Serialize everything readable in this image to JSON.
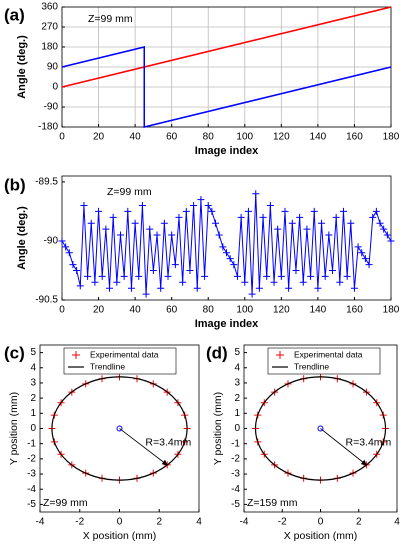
{
  "chart_data": [
    {
      "type": "line",
      "panel_label": "(a)",
      "xlabel": "Image index",
      "ylabel": "Angle (deg.)",
      "annotation": "Z=99 mm",
      "xlim": [
        0,
        180
      ],
      "ylim": [
        -180,
        360
      ],
      "xticks": [
        0,
        20,
        40,
        60,
        80,
        100,
        120,
        140,
        160,
        180
      ],
      "yticks": [
        -180,
        -90,
        0,
        90,
        180,
        270,
        360
      ],
      "grid": true,
      "series": [
        {
          "color": "#ff0000",
          "x": [
            0,
            180
          ],
          "values": [
            0,
            360
          ]
        },
        {
          "color": "#0000ff",
          "x": [
            0,
            45,
            45,
            180
          ],
          "values": [
            90,
            180,
            -180,
            90
          ]
        }
      ]
    },
    {
      "type": "line",
      "panel_label": "(b)",
      "xlabel": "Image index",
      "ylabel": "Angle (deg.)",
      "annotation": "Z=99 mm",
      "xlim": [
        0,
        180
      ],
      "ylim": [
        -90.5,
        -89.45
      ],
      "xticks": [
        0,
        20,
        40,
        60,
        80,
        100,
        120,
        140,
        160,
        180
      ],
      "yticks": [
        -90.5,
        -90,
        -89.5
      ],
      "grid": false,
      "series": [
        {
          "color": "#0000ff",
          "marker": "+",
          "x": [
            0,
            2,
            4,
            6,
            8,
            10,
            12,
            14,
            16,
            18,
            20,
            22,
            24,
            26,
            28,
            30,
            32,
            34,
            36,
            38,
            40,
            42,
            44,
            46,
            48,
            50,
            52,
            54,
            56,
            58,
            60,
            62,
            64,
            66,
            68,
            70,
            72,
            74,
            76,
            78,
            80,
            82,
            84,
            86,
            88,
            90,
            92,
            94,
            96,
            98,
            100,
            102,
            104,
            106,
            108,
            110,
            112,
            114,
            116,
            118,
            120,
            122,
            124,
            126,
            128,
            130,
            132,
            134,
            136,
            138,
            140,
            142,
            144,
            146,
            148,
            150,
            152,
            154,
            156,
            158,
            160,
            162,
            164,
            166,
            168,
            170,
            172,
            174,
            176,
            178,
            180
          ],
          "values": [
            -90.0,
            -90.05,
            -90.1,
            -90.2,
            -90.25,
            -90.38,
            -89.7,
            -90.3,
            -89.85,
            -90.35,
            -89.75,
            -90.3,
            -89.9,
            -90.4,
            -89.8,
            -90.35,
            -89.95,
            -90.3,
            -89.75,
            -90.4,
            -89.85,
            -90.3,
            -89.7,
            -90.45,
            -89.9,
            -90.25,
            -89.95,
            -90.4,
            -89.85,
            -90.3,
            -89.95,
            -90.2,
            -89.8,
            -90.35,
            -89.75,
            -90.25,
            -89.7,
            -90.4,
            -89.65,
            -90.3,
            -89.7,
            -89.75,
            -89.85,
            -89.95,
            -90.05,
            -90.1,
            -90.15,
            -90.2,
            -90.3,
            -89.8,
            -90.35,
            -89.75,
            -90.45,
            -89.6,
            -90.4,
            -89.8,
            -90.3,
            -89.7,
            -90.35,
            -89.9,
            -90.3,
            -89.75,
            -90.4,
            -89.85,
            -90.25,
            -89.8,
            -90.35,
            -89.9,
            -90.3,
            -89.75,
            -90.4,
            -89.85,
            -90.3,
            -89.95,
            -90.25,
            -89.8,
            -90.35,
            -89.75,
            -90.3,
            -89.85,
            -90.4,
            -90.05,
            -90.1,
            -90.15,
            -90.2,
            -89.8,
            -89.75,
            -89.85,
            -89.9,
            -89.95,
            -90.0
          ]
        }
      ]
    },
    {
      "type": "scatter",
      "panel_label": "(c)",
      "xlabel": "X position (mm)",
      "ylabel": "Y position (mm)",
      "annotation": "Z=99 mm",
      "radius_label": "R=3.4mm",
      "xlim": [
        -4,
        4
      ],
      "ylim": [
        -5.5,
        5.5
      ],
      "xticks": [
        -4,
        -2,
        0,
        2,
        4
      ],
      "yticks": [
        -5,
        -4,
        -3,
        -2,
        -1,
        0,
        1,
        2,
        3,
        4,
        5
      ],
      "legend": "top",
      "center_marker": {
        "x": 0,
        "y": 0,
        "color": "#0000ff"
      },
      "series": [
        {
          "name": "Experimental data",
          "color": "#ff0000",
          "marker": "+",
          "x": [
            3.4,
            3.28,
            2.94,
            2.4,
            1.7,
            0.88,
            0,
            -0.88,
            -1.7,
            -2.4,
            -2.94,
            -3.28,
            -3.4,
            -3.28,
            -2.94,
            -2.4,
            -1.7,
            -0.88,
            0,
            0.88,
            1.7,
            2.4,
            2.94,
            3.28
          ],
          "values": [
            0,
            0.88,
            1.7,
            2.4,
            2.94,
            3.28,
            3.4,
            3.28,
            2.94,
            2.4,
            1.7,
            0.88,
            0,
            -0.88,
            -1.7,
            -2.4,
            -2.94,
            -3.28,
            -3.4,
            -3.28,
            -2.94,
            -2.4,
            -1.7,
            -0.88
          ]
        },
        {
          "name": "Trendline",
          "color": "#000000",
          "shape": "circle",
          "center": [
            0,
            0
          ],
          "radius": 3.4
        }
      ]
    },
    {
      "type": "scatter",
      "panel_label": "(d)",
      "xlabel": "X position (mm)",
      "ylabel": "Y position (mm)",
      "annotation": "Z=159 mm",
      "radius_label": "R=3.4mm",
      "xlim": [
        -4,
        4
      ],
      "ylim": [
        -5.5,
        5.5
      ],
      "xticks": [
        -4,
        -2,
        0,
        2,
        4
      ],
      "yticks": [
        -5,
        -4,
        -3,
        -2,
        -1,
        0,
        1,
        2,
        3,
        4,
        5
      ],
      "legend": "top",
      "center_marker": {
        "x": 0,
        "y": 0,
        "color": "#0000ff"
      },
      "series": [
        {
          "name": "Experimental data",
          "color": "#ff0000",
          "marker": "+",
          "x": [
            3.4,
            3.28,
            2.94,
            2.4,
            1.7,
            0.88,
            0,
            -0.88,
            -1.7,
            -2.4,
            -2.94,
            -3.28,
            -3.4,
            -3.28,
            -2.94,
            -2.4,
            -1.7,
            -0.88,
            0,
            0.88,
            1.7,
            2.4,
            2.94,
            3.28
          ],
          "values": [
            0,
            0.88,
            1.7,
            2.4,
            2.94,
            3.28,
            3.4,
            3.28,
            2.94,
            2.4,
            1.7,
            0.88,
            0,
            -0.88,
            -1.7,
            -2.4,
            -2.94,
            -3.28,
            -3.4,
            -3.28,
            -2.94,
            -2.4,
            -1.7,
            -0.88
          ]
        },
        {
          "name": "Trendline",
          "color": "#000000",
          "shape": "circle",
          "center": [
            0,
            0
          ],
          "radius": 3.4
        }
      ]
    }
  ]
}
